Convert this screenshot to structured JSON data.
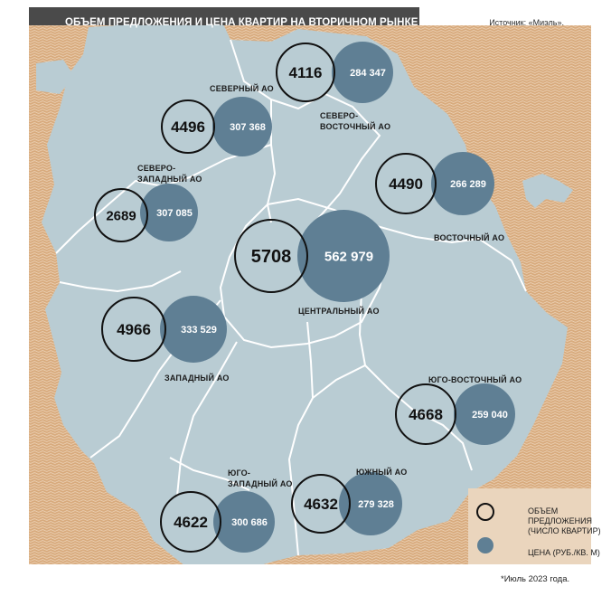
{
  "header": {
    "title": "ОБЪЕМ ПРЕДЛОЖЕНИЯ И ЦЕНА КВАРТИР НА ВТОРИЧНОМ РЫНКЕ МОСКВЫ*",
    "source": "Источник: «Миэль»."
  },
  "footnote": "*Июль 2023 года.",
  "legend": {
    "volume_line1": "ОБЪЕМ",
    "volume_line2": "ПРЕДЛОЖЕНИЯ",
    "volume_line3": "(ЧИСЛО КВАРТИР)",
    "price": "ЦЕНА (РУБ./КВ. М)"
  },
  "colors": {
    "water": "#d6a97c",
    "land": "#b9ccd3",
    "price_circle": "#5f7f94",
    "header_bg": "#4a4a4a"
  },
  "districts": [
    {
      "id": "north",
      "name_lines": [
        "СЕВЕРНЫЙ АО"
      ],
      "volume": "4496",
      "price": "307 368"
    },
    {
      "id": "northeast",
      "name_lines": [
        "СЕВЕРО-",
        "ВОСТОЧНЫЙ АО"
      ],
      "volume": "4116",
      "price": "284 347"
    },
    {
      "id": "northwest",
      "name_lines": [
        "СЕВЕРО-",
        "ЗАПАДНЫЙ АО"
      ],
      "volume": "2689",
      "price": "307 085"
    },
    {
      "id": "east",
      "name_lines": [
        "ВОСТОЧНЫЙ АО"
      ],
      "volume": "4490",
      "price": "266 289"
    },
    {
      "id": "central",
      "name_lines": [
        "ЦЕНТРАЛЬНЫЙ АО"
      ],
      "volume": "5708",
      "price": "562 979"
    },
    {
      "id": "west",
      "name_lines": [
        "ЗАПАДНЫЙ АО"
      ],
      "volume": "4966",
      "price": "333 529"
    },
    {
      "id": "southeast",
      "name_lines": [
        "ЮГО-ВОСТОЧНЫЙ АО"
      ],
      "volume": "4668",
      "price": "259 040"
    },
    {
      "id": "south",
      "name_lines": [
        "ЮЖНЫЙ АО"
      ],
      "volume": "4632",
      "price": "279 328"
    },
    {
      "id": "southwest",
      "name_lines": [
        "ЮГО-",
        "ЗАПАДНЫЙ АО"
      ],
      "volume": "4622",
      "price": "300 686"
    }
  ]
}
